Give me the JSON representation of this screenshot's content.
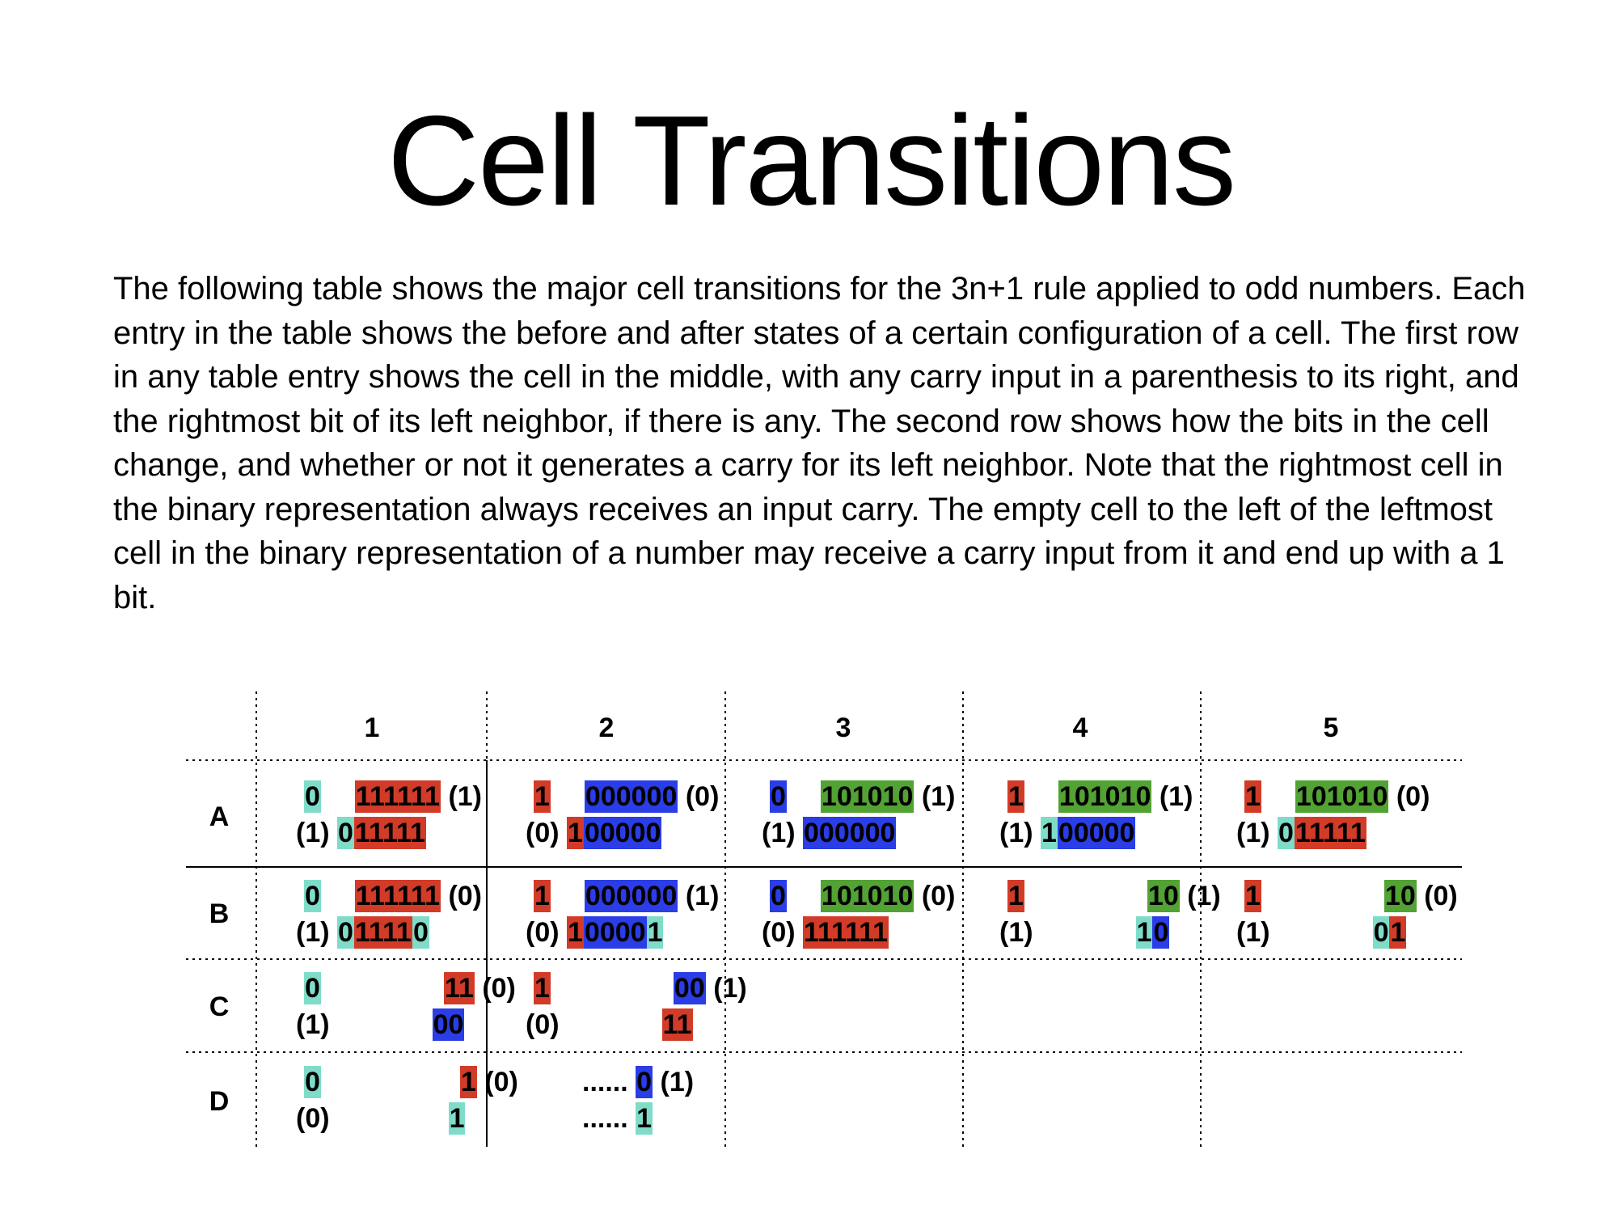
{
  "title": "Cell Transitions",
  "description": "The following table shows the major cell transitions for the 3n+1 rule applied to odd numbers. Each entry in the table shows the before and after states of a certain configuration of a cell. The first row in any table entry shows the cell in the middle, with any carry input in a parenthesis to its right, and the rightmost bit of its left neighbor, if there is any. The second row shows how the bits in the cell change, and whether or not it generates a carry for its left neighbor. Note that the rightmost cell in the binary representation always receives an input carry. The empty cell to the left of the leftmost cell in the binary representation of a number may receive a carry input from it and end up with a 1 bit.",
  "colors": {
    "red": "#d23b28",
    "blue": "#2a3de6",
    "green": "#52a234",
    "teal": "#7fdcc9"
  },
  "table": {
    "column_headers": [
      "1",
      "2",
      "3",
      "4",
      "5"
    ],
    "row_labels": [
      "A",
      "B",
      "C",
      "D"
    ],
    "cells": {
      "A1": {
        "top": [
          {
            "t": "0",
            "c": "T"
          },
          {
            "s": 42
          },
          {
            "t": "111111",
            "c": "R"
          },
          {
            "t": " (1)"
          }
        ],
        "bottom": [
          {
            "t": "(1) "
          },
          {
            "t": "0",
            "c": "T"
          },
          {
            "t": "11111",
            "c": "R"
          }
        ]
      },
      "A2": {
        "top": [
          {
            "t": "1",
            "c": "R"
          },
          {
            "s": 42
          },
          {
            "t": "000000",
            "c": "B"
          },
          {
            "t": " (0)"
          }
        ],
        "bottom": [
          {
            "t": "(0) "
          },
          {
            "t": "1",
            "c": "R"
          },
          {
            "t": "00000",
            "c": "B"
          }
        ]
      },
      "A3": {
        "top": [
          {
            "t": "0",
            "c": "B"
          },
          {
            "s": 42
          },
          {
            "t": "101010",
            "c": "G"
          },
          {
            "t": " (1)"
          }
        ],
        "bottom": [
          {
            "t": "(1) "
          },
          {
            "t": "000000",
            "c": "B"
          }
        ]
      },
      "A4": {
        "top": [
          {
            "t": "1",
            "c": "R"
          },
          {
            "s": 42
          },
          {
            "t": "101010",
            "c": "G"
          },
          {
            "t": " (1)"
          }
        ],
        "bottom": [
          {
            "t": "(1) "
          },
          {
            "t": "1",
            "c": "T"
          },
          {
            "t": "00000",
            "c": "B"
          }
        ]
      },
      "A5": {
        "top": [
          {
            "t": "1",
            "c": "R"
          },
          {
            "s": 42
          },
          {
            "t": "101010",
            "c": "G"
          },
          {
            "t": " (0)"
          }
        ],
        "bottom": [
          {
            "t": "(1) "
          },
          {
            "t": "0",
            "c": "T"
          },
          {
            "t": "11111",
            "c": "R"
          }
        ]
      },
      "B1": {
        "top": [
          {
            "t": "0",
            "c": "T"
          },
          {
            "s": 42
          },
          {
            "t": "111111",
            "c": "R"
          },
          {
            "t": " (0)"
          }
        ],
        "bottom": [
          {
            "t": "(1) "
          },
          {
            "t": "0",
            "c": "T"
          },
          {
            "t": "1111",
            "c": "R"
          },
          {
            "t": "0",
            "c": "T"
          }
        ]
      },
      "B2": {
        "top": [
          {
            "t": "1",
            "c": "R"
          },
          {
            "s": 42
          },
          {
            "t": "000000",
            "c": "B"
          },
          {
            "t": " (1)"
          }
        ],
        "bottom": [
          {
            "t": "(0) "
          },
          {
            "t": "1",
            "c": "R"
          },
          {
            "t": "0000",
            "c": "B"
          },
          {
            "t": "1",
            "c": "T"
          }
        ]
      },
      "B3": {
        "top": [
          {
            "t": "0",
            "c": "B"
          },
          {
            "s": 42
          },
          {
            "t": "101010",
            "c": "G"
          },
          {
            "t": " (0)"
          }
        ],
        "bottom": [
          {
            "t": "(0) "
          },
          {
            "t": "111111",
            "c": "R"
          }
        ]
      },
      "B4": {
        "top": [
          {
            "t": "1",
            "c": "R"
          },
          {
            "s": 152
          },
          {
            "t": "10",
            "c": "G"
          },
          {
            "t": " (1)"
          }
        ],
        "bottom": [
          {
            "t": "(1)"
          },
          {
            "s": 127
          },
          {
            "t": "1",
            "c": "T"
          },
          {
            "t": "0",
            "c": "B"
          }
        ]
      },
      "B5": {
        "top": [
          {
            "t": "1",
            "c": "R"
          },
          {
            "s": 152
          },
          {
            "t": "10",
            "c": "G"
          },
          {
            "t": " (0)"
          }
        ],
        "bottom": [
          {
            "t": "(1)"
          },
          {
            "s": 127
          },
          {
            "t": "0",
            "c": "T"
          },
          {
            "t": "1",
            "c": "R"
          }
        ]
      },
      "C1": {
        "top": [
          {
            "t": "0",
            "c": "T"
          },
          {
            "s": 152
          },
          {
            "t": "11",
            "c": "R"
          },
          {
            "t": " (0)"
          }
        ],
        "bottom": [
          {
            "t": "(1)"
          },
          {
            "s": 127
          },
          {
            "t": "00",
            "c": "B"
          }
        ]
      },
      "C2": {
        "top": [
          {
            "t": "1",
            "c": "R"
          },
          {
            "s": 152
          },
          {
            "t": "00",
            "c": "B"
          },
          {
            "t": " (1)"
          }
        ],
        "bottom": [
          {
            "t": "(0)"
          },
          {
            "s": 127
          },
          {
            "t": "11",
            "c": "R"
          }
        ]
      },
      "D1": {
        "top": [
          {
            "t": "0",
            "c": "T"
          },
          {
            "s": 172
          },
          {
            "t": "1",
            "c": "R"
          },
          {
            "t": " (0)"
          }
        ],
        "bottom": [
          {
            "t": "(0)"
          },
          {
            "s": 147
          },
          {
            "t": "1",
            "c": "T"
          }
        ]
      },
      "D2": {
        "top": [
          {
            "s": 60
          },
          {
            "t": "...... "
          },
          {
            "t": "0",
            "c": "B"
          },
          {
            "t": " (1)"
          }
        ],
        "bottom": [
          {
            "s": 60
          },
          {
            "t": "...... "
          },
          {
            "t": "1",
            "c": "T"
          }
        ]
      }
    }
  }
}
